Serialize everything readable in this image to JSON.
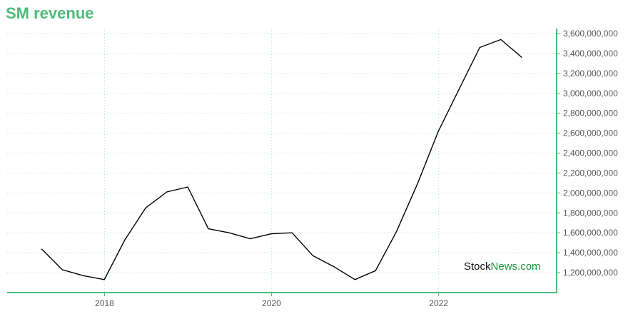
{
  "title": "SM revenue",
  "watermark": {
    "part1": "Stock",
    "part2": "News.com"
  },
  "colors": {
    "accent": "#4dbb7a",
    "line": "#000000",
    "grid": "#b9e3c7"
  },
  "chart_data": {
    "type": "line",
    "title": "SM revenue",
    "xlabel": "",
    "ylabel": "",
    "grid": true,
    "legend": "none",
    "xlim": [
      "2016-11-01",
      "2023-06-01"
    ],
    "ylim": [
      1000000000,
      3650000000
    ],
    "x_ticks": [
      {
        "date": "2018-01-01",
        "label": "2018"
      },
      {
        "date": "2020-01-01",
        "label": "2020"
      },
      {
        "date": "2022-01-01",
        "label": "2022"
      }
    ],
    "y_ticks": [
      {
        "value": 1200000000,
        "label": "1,200,000,000"
      },
      {
        "value": 1400000000,
        "label": "1,400,000,000"
      },
      {
        "value": 1600000000,
        "label": "1,600,000,000"
      },
      {
        "value": 1800000000,
        "label": "1,800,000,000"
      },
      {
        "value": 2000000000,
        "label": "2,000,000,000"
      },
      {
        "value": 2200000000,
        "label": "2,200,000,000"
      },
      {
        "value": 2400000000,
        "label": "2,400,000,000"
      },
      {
        "value": 2600000000,
        "label": "2,600,000,000"
      },
      {
        "value": 2800000000,
        "label": "2,800,000,000"
      },
      {
        "value": 3000000000,
        "label": "3,000,000,000"
      },
      {
        "value": 3200000000,
        "label": "3,200,000,000"
      },
      {
        "value": 3400000000,
        "label": "3,400,000,000"
      },
      {
        "value": 3600000000,
        "label": "3,600,000,000"
      }
    ],
    "series": [
      {
        "points": [
          {
            "x": "2017-03-31",
            "y": 1440000000
          },
          {
            "x": "2017-06-30",
            "y": 1230000000
          },
          {
            "x": "2017-09-30",
            "y": 1170000000
          },
          {
            "x": "2017-12-31",
            "y": 1130000000
          },
          {
            "x": "2018-03-31",
            "y": 1530000000
          },
          {
            "x": "2018-06-30",
            "y": 1850000000
          },
          {
            "x": "2018-09-30",
            "y": 2010000000
          },
          {
            "x": "2018-12-31",
            "y": 2060000000
          },
          {
            "x": "2019-03-31",
            "y": 1640000000
          },
          {
            "x": "2019-06-30",
            "y": 1600000000
          },
          {
            "x": "2019-09-30",
            "y": 1540000000
          },
          {
            "x": "2019-12-31",
            "y": 1590000000
          },
          {
            "x": "2020-03-31",
            "y": 1600000000
          },
          {
            "x": "2020-06-30",
            "y": 1370000000
          },
          {
            "x": "2020-09-30",
            "y": 1260000000
          },
          {
            "x": "2020-12-31",
            "y": 1130000000
          },
          {
            "x": "2021-03-31",
            "y": 1220000000
          },
          {
            "x": "2021-06-30",
            "y": 1610000000
          },
          {
            "x": "2021-09-30",
            "y": 2090000000
          },
          {
            "x": "2021-12-31",
            "y": 2620000000
          },
          {
            "x": "2022-03-31",
            "y": 3040000000
          },
          {
            "x": "2022-06-30",
            "y": 3460000000
          },
          {
            "x": "2022-09-30",
            "y": 3540000000
          },
          {
            "x": "2022-12-31",
            "y": 3360000000
          }
        ]
      }
    ]
  }
}
